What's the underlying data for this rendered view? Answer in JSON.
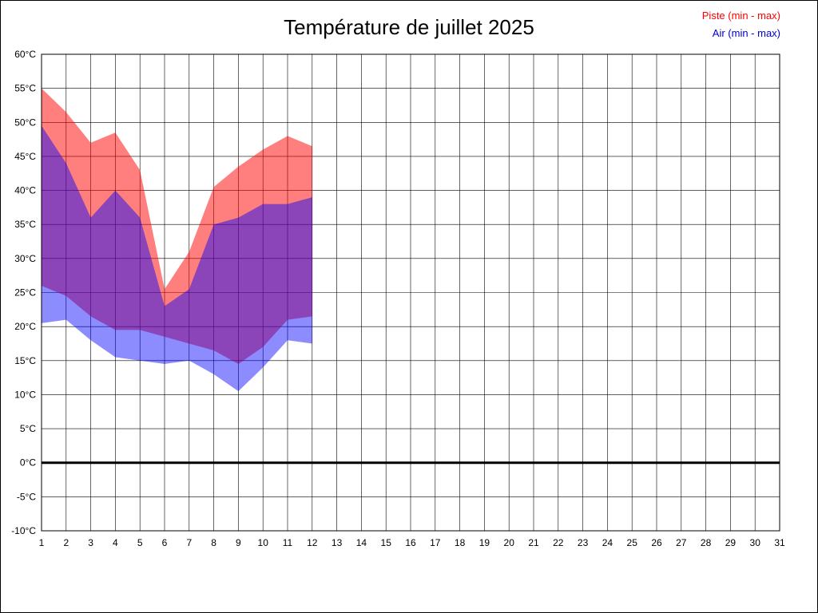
{
  "title": "Température de juillet 2025",
  "legend": {
    "items": [
      {
        "label": "Piste (min - max)",
        "color": "#ff0000"
      },
      {
        "label": "Air (min - max)",
        "color": "#0000cc"
      }
    ]
  },
  "chart_data": {
    "type": "area",
    "title": "Température de juillet 2025",
    "xlabel": "",
    "ylabel": "",
    "x_range": [
      1,
      31
    ],
    "y_range": [
      -10,
      60
    ],
    "grid": true,
    "zero_line": true,
    "y_tick_suffix": "°C",
    "x_ticks": [
      1,
      2,
      3,
      4,
      5,
      6,
      7,
      8,
      9,
      10,
      11,
      12,
      13,
      14,
      15,
      16,
      17,
      18,
      19,
      20,
      21,
      22,
      23,
      24,
      25,
      26,
      27,
      28,
      29,
      30,
      31
    ],
    "y_ticks": [
      60,
      55,
      50,
      45,
      40,
      35,
      30,
      25,
      20,
      15,
      10,
      5,
      0,
      -5,
      -10
    ],
    "days": [
      1,
      2,
      3,
      4,
      5,
      6,
      7,
      8,
      9,
      10,
      11,
      12
    ],
    "series": [
      {
        "id": "piste",
        "name": "Piste (min - max)",
        "legend_color": "#ff0000",
        "fill": "rgba(255,0,0,0.5)",
        "min": [
          26,
          24.5,
          21.5,
          19.5,
          19.5,
          18.5,
          17.5,
          16.5,
          14.5,
          17,
          21,
          21.5
        ],
        "max": [
          55,
          51.5,
          47,
          48.5,
          43,
          25.5,
          31,
          40.5,
          43.5,
          46,
          48,
          46.5
        ]
      },
      {
        "id": "air",
        "name": "Air (min - max)",
        "legend_color": "#0000cc",
        "fill": "rgba(0,0,255,0.45)",
        "min": [
          20.5,
          21,
          18,
          15.5,
          15,
          14.5,
          15,
          13,
          10.5,
          14,
          18,
          17.5
        ],
        "max": [
          49.5,
          44,
          36,
          40,
          36,
          23,
          25.5,
          35,
          36,
          38,
          38,
          39
        ]
      }
    ]
  }
}
